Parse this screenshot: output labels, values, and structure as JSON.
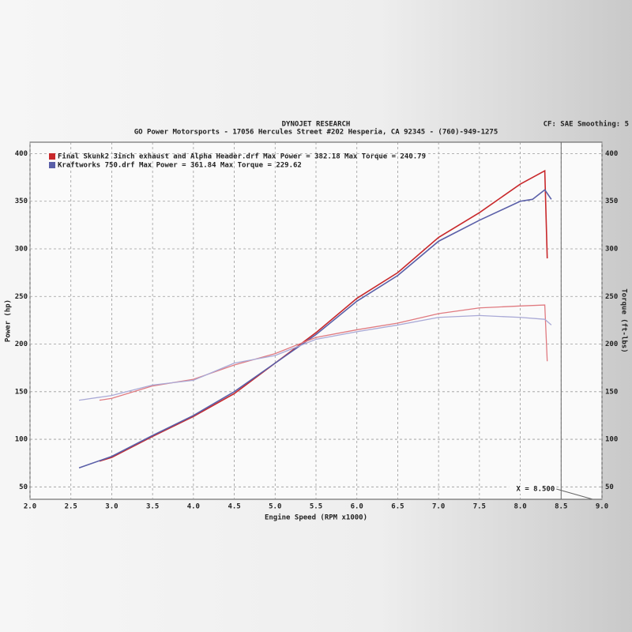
{
  "chart_data": {
    "type": "line",
    "header": "DYNOJET RESEARCH",
    "subtitle": "GO Power Motorsports - 17056 Hercules Street #202 Hesperia, CA 92345 - (760)-949-1275",
    "settings_text": "CF: SAE  Smoothing: 5",
    "xlabel": "Engine Speed (RPM x1000)",
    "ylabel": "Power (hp)",
    "y2label": "Torque (ft-lbs)",
    "xlim": [
      2.0,
      9.0
    ],
    "xticks": [
      {
        "value": 2,
        "label": "2.0"
      },
      2.5,
      {
        "value": 3,
        "label": "3.0"
      },
      3.5,
      {
        "value": 4,
        "label": "4.0"
      },
      4.5,
      {
        "value": 5,
        "label": "5.0"
      },
      5.5,
      {
        "value": 6,
        "label": "6.0"
      },
      6.5,
      {
        "value": 7,
        "label": "7.0"
      },
      7.5,
      {
        "value": 8,
        "label": "8.0"
      },
      8.5,
      {
        "value": 9,
        "label": "9.0"
      }
    ],
    "ylim": [
      37,
      412
    ],
    "yticks": [
      50,
      100,
      150,
      200,
      250,
      300,
      350,
      400
    ],
    "y2lim": [
      37,
      412
    ],
    "y2ticks": [
      50,
      100,
      150,
      200,
      250,
      300,
      350,
      400
    ],
    "grid": true,
    "cursor": {
      "value": 8.5,
      "label": "X = 8.500"
    },
    "series": [
      {
        "name": "Final Skunk2 3inch exhaust and Alpha Header.drf Max Power = 382.18 Max Torque = 240.79",
        "color": "#c8282b",
        "x": [
          2.85,
          3.0,
          3.5,
          4.0,
          4.5,
          5.0,
          5.5,
          6.0,
          6.5,
          7.0,
          7.5,
          8.0,
          8.3,
          8.33
        ],
        "values": [
          77,
          81,
          103,
          124,
          148,
          180,
          212,
          248,
          275,
          312,
          338,
          368,
          382,
          290
        ]
      },
      {
        "name": "Kraftworks 750.drf Max Power = 361.84 Max Torque = 229.62",
        "color": "#5a5fa8",
        "x": [
          2.6,
          3.0,
          3.5,
          4.0,
          4.5,
          5.0,
          5.5,
          6.0,
          6.5,
          7.0,
          7.5,
          8.0,
          8.15,
          8.3,
          8.38
        ],
        "values": [
          70,
          82,
          104,
          125,
          150,
          180,
          210,
          245,
          272,
          308,
          330,
          350,
          352,
          362,
          352
        ]
      },
      {
        "color": "#e07a80",
        "axis": "y2",
        "x": [
          2.85,
          3.0,
          3.5,
          4.0,
          4.5,
          5.0,
          5.5,
          6.0,
          6.5,
          7.0,
          7.5,
          8.0,
          8.3,
          8.33
        ],
        "values": [
          141,
          143,
          156,
          163,
          178,
          190,
          207,
          215,
          222,
          232,
          238,
          240,
          241,
          182
        ]
      },
      {
        "color": "#a9a9d6",
        "axis": "y2",
        "x": [
          2.6,
          3.0,
          3.5,
          4.0,
          4.5,
          5.0,
          5.5,
          6.0,
          6.5,
          7.0,
          7.5,
          8.0,
          8.3,
          8.38
        ],
        "values": [
          141,
          146,
          157,
          162,
          180,
          188,
          205,
          213,
          220,
          228,
          230,
          228,
          226,
          220
        ]
      }
    ]
  }
}
